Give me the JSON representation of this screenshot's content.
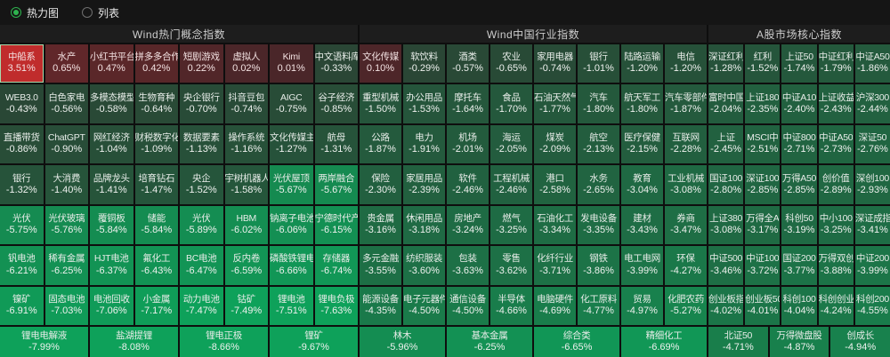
{
  "toolbar": {
    "heatmap_label": "热力图",
    "list_label": "列表"
  },
  "colors": {
    "positive_strong": "#c02c2c",
    "positive_weak": "#4a2629",
    "negative_weak": "#2b4233",
    "negative_strong": "#0ea15a",
    "positive_max": 3.5,
    "negative_max": 7.5,
    "radio_accent": "#2eb34e"
  },
  "panels": [
    {
      "title": "Wind热门概念指数",
      "columns": 8,
      "rows": [
        [
          {
            "n": "中船系",
            "v": 3.51,
            "selected": true
          },
          {
            "n": "水产",
            "v": 0.65
          },
          {
            "n": "小红书平台",
            "v": 0.47
          },
          {
            "n": "拼多多合作",
            "v": 0.42
          },
          {
            "n": "短剧游戏",
            "v": 0.22
          },
          {
            "n": "虚拟人",
            "v": 0.02
          },
          {
            "n": "Kimi",
            "v": 0.01
          },
          {
            "n": "中文语料库",
            "v": -0.33
          }
        ],
        [
          {
            "n": "WEB3.0",
            "v": -0.43
          },
          {
            "n": "白色家电",
            "v": -0.56
          },
          {
            "n": "多模态模型",
            "v": -0.58
          },
          {
            "n": "生物育种",
            "v": -0.64
          },
          {
            "n": "央企银行",
            "v": -0.7
          },
          {
            "n": "抖音豆包",
            "v": -0.74
          },
          {
            "n": "AIGC",
            "v": -0.75
          },
          {
            "n": "谷子经济",
            "v": -0.85
          }
        ],
        [
          {
            "n": "直播带货",
            "v": -0.86
          },
          {
            "n": "ChatGPT",
            "v": -0.9
          },
          {
            "n": "网红经济",
            "v": -1.04
          },
          {
            "n": "财税数字化",
            "v": -1.09
          },
          {
            "n": "数据要素",
            "v": -1.13
          },
          {
            "n": "操作系统",
            "v": -1.16
          },
          {
            "n": "文化传媒主",
            "v": -1.27
          },
          {
            "n": "航母",
            "v": -1.31
          }
        ],
        [
          {
            "n": "银行",
            "v": -1.32
          },
          {
            "n": "大消费",
            "v": -1.4
          },
          {
            "n": "品牌龙头",
            "v": -1.41
          },
          {
            "n": "培育钻石",
            "v": -1.47
          },
          {
            "n": "央企",
            "v": -1.52
          },
          {
            "n": "宇树机器人",
            "v": -1.58
          },
          {
            "n": "光伏屋顶",
            "v": -5.67
          },
          {
            "n": "两岸融合",
            "v": -5.67
          }
        ],
        [
          {
            "n": "光伏",
            "v": -5.75
          },
          {
            "n": "光伏玻璃",
            "v": -5.76
          },
          {
            "n": "覆铜板",
            "v": -5.84
          },
          {
            "n": "储能",
            "v": -5.84
          },
          {
            "n": "光伏",
            "v": -5.89
          },
          {
            "n": "HBM",
            "v": -6.02
          },
          {
            "n": "钠离子电池",
            "v": -6.06
          },
          {
            "n": "宁德时代产",
            "v": -6.15
          }
        ],
        [
          {
            "n": "钒电池",
            "v": -6.21
          },
          {
            "n": "稀有金属",
            "v": -6.25
          },
          {
            "n": "HJT电池",
            "v": -6.37
          },
          {
            "n": "氟化工",
            "v": -6.43
          },
          {
            "n": "BC电池",
            "v": -6.47
          },
          {
            "n": "反内卷",
            "v": -6.59
          },
          {
            "n": "磷酸铁锂电",
            "v": -6.66
          },
          {
            "n": "存储器",
            "v": -6.74
          }
        ],
        [
          {
            "n": "镍矿",
            "v": -6.91
          },
          {
            "n": "固态电池",
            "v": -7.03
          },
          {
            "n": "电池回收",
            "v": -7.06
          },
          {
            "n": "小金属",
            "v": -7.17
          },
          {
            "n": "动力电池",
            "v": -7.47
          },
          {
            "n": "钴矿",
            "v": -7.49
          },
          {
            "n": "锂电池",
            "v": -7.51
          },
          {
            "n": "锂电负极",
            "v": -7.63
          }
        ]
      ],
      "footer": [
        {
          "n": "锂电电解液",
          "v": -7.99
        },
        {
          "n": "盐湖提锂",
          "v": -8.08
        },
        {
          "n": "锂电正极",
          "v": -8.66
        },
        {
          "n": "锂矿",
          "v": -9.67
        }
      ]
    },
    {
      "title": "Wind中国行业指数",
      "columns": 8,
      "rows": [
        [
          {
            "n": "文化传媒",
            "v": 0.1
          },
          {
            "n": "软饮料",
            "v": -0.29
          },
          {
            "n": "酒类",
            "v": -0.57
          },
          {
            "n": "农业",
            "v": -0.65
          },
          {
            "n": "家用电器",
            "v": -0.74
          },
          {
            "n": "银行",
            "v": -1.01
          },
          {
            "n": "陆路运输",
            "v": -1.2
          },
          {
            "n": "电信",
            "v": -1.2
          }
        ],
        [
          {
            "n": "重型机械",
            "v": -1.5
          },
          {
            "n": "办公用品",
            "v": -1.53
          },
          {
            "n": "摩托车",
            "v": -1.64
          },
          {
            "n": "食品",
            "v": -1.7
          },
          {
            "n": "石油天然气",
            "v": -1.77
          },
          {
            "n": "汽车",
            "v": -1.8
          },
          {
            "n": "航天军工",
            "v": -1.8
          },
          {
            "n": "汽车零部件",
            "v": -1.87
          }
        ],
        [
          {
            "n": "公路",
            "v": -1.87
          },
          {
            "n": "电力",
            "v": -1.91
          },
          {
            "n": "机场",
            "v": -2.01
          },
          {
            "n": "海运",
            "v": -2.05
          },
          {
            "n": "煤炭",
            "v": -2.09
          },
          {
            "n": "航空",
            "v": -2.13
          },
          {
            "n": "医疗保健",
            "v": -2.15
          },
          {
            "n": "互联网",
            "v": -2.28
          }
        ],
        [
          {
            "n": "保险",
            "v": -2.3
          },
          {
            "n": "家居用品",
            "v": -2.39
          },
          {
            "n": "软件",
            "v": -2.46
          },
          {
            "n": "工程机械",
            "v": -2.46
          },
          {
            "n": "港口",
            "v": -2.58
          },
          {
            "n": "水务",
            "v": -2.65
          },
          {
            "n": "教育",
            "v": -3.04
          },
          {
            "n": "工业机械",
            "v": -3.08
          }
        ],
        [
          {
            "n": "贵金属",
            "v": -3.16
          },
          {
            "n": "休闲用品",
            "v": -3.18
          },
          {
            "n": "房地产",
            "v": -3.24
          },
          {
            "n": "燃气",
            "v": -3.25
          },
          {
            "n": "石油化工",
            "v": -3.34
          },
          {
            "n": "发电设备",
            "v": -3.35
          },
          {
            "n": "建材",
            "v": -3.43
          },
          {
            "n": "券商",
            "v": -3.47
          }
        ],
        [
          {
            "n": "多元金融",
            "v": -3.55
          },
          {
            "n": "纺织服装",
            "v": -3.6
          },
          {
            "n": "包装",
            "v": -3.63
          },
          {
            "n": "零售",
            "v": -3.62
          },
          {
            "n": "化纤行业",
            "v": -3.71
          },
          {
            "n": "钢铁",
            "v": -3.86
          },
          {
            "n": "电工电网",
            "v": -3.99
          },
          {
            "n": "环保",
            "v": -4.27
          }
        ],
        [
          {
            "n": "能源设备",
            "v": -4.35
          },
          {
            "n": "电子元器件",
            "v": -4.5
          },
          {
            "n": "通信设备",
            "v": -4.5
          },
          {
            "n": "半导体",
            "v": -4.66
          },
          {
            "n": "电脑硬件",
            "v": -4.69
          },
          {
            "n": "化工原料",
            "v": -4.77
          },
          {
            "n": "贸易",
            "v": -4.97
          },
          {
            "n": "化肥农药",
            "v": -5.27
          }
        ]
      ],
      "footer": [
        {
          "n": "林木",
          "v": -5.96
        },
        {
          "n": "基本金属",
          "v": -6.25
        },
        {
          "n": "综合类",
          "v": -6.65
        },
        {
          "n": "精细化工",
          "v": -6.69
        }
      ]
    },
    {
      "title": "A股市场核心指数",
      "columns": 5,
      "rows": [
        [
          {
            "n": "深证红利",
            "v": -1.28
          },
          {
            "n": "红利",
            "v": -1.52
          },
          {
            "n": "上证50",
            "v": -1.74
          },
          {
            "n": "中证红利",
            "v": -1.79
          },
          {
            "n": "中证A50",
            "v": -1.86
          }
        ],
        [
          {
            "n": "富时中国",
            "v": -2.04
          },
          {
            "n": "上证180",
            "v": -2.35
          },
          {
            "n": "中证A10",
            "v": -2.4
          },
          {
            "n": "上证收益",
            "v": -2.43
          },
          {
            "n": "沪深300",
            "v": -2.44
          }
        ],
        [
          {
            "n": "上证",
            "v": -2.45
          },
          {
            "n": "MSCI中",
            "v": -2.51
          },
          {
            "n": "中证800",
            "v": -2.71
          },
          {
            "n": "中证A50",
            "v": -2.73
          },
          {
            "n": "深证50",
            "v": -2.76
          }
        ],
        [
          {
            "n": "国证100",
            "v": -2.8
          },
          {
            "n": "深证100",
            "v": -2.85
          },
          {
            "n": "万得A50",
            "v": -2.85
          },
          {
            "n": "创价值",
            "v": -2.89
          },
          {
            "n": "深创100",
            "v": -2.93
          }
        ],
        [
          {
            "n": "上证380",
            "v": -3.08
          },
          {
            "n": "万得全A",
            "v": -3.17
          },
          {
            "n": "科创50",
            "v": -3.19
          },
          {
            "n": "中小100",
            "v": -3.25
          },
          {
            "n": "深证成指",
            "v": -3.41
          }
        ],
        [
          {
            "n": "中证500",
            "v": -3.46
          },
          {
            "n": "中证100",
            "v": -3.72
          },
          {
            "n": "国证200",
            "v": -3.77
          },
          {
            "n": "万得双创",
            "v": -3.88
          },
          {
            "n": "中证200",
            "v": -3.99
          }
        ],
        [
          {
            "n": "创业板指",
            "v": -4.02
          },
          {
            "n": "创业板50",
            "v": -4.01
          },
          {
            "n": "科创100",
            "v": -4.04
          },
          {
            "n": "科创创业",
            "v": -4.24
          },
          {
            "n": "科创200",
            "v": -4.55
          }
        ]
      ],
      "footer": [
        {
          "n": "北证50",
          "v": -4.71
        },
        {
          "n": "万得微盘股",
          "v": -4.87
        },
        {
          "n": "创成长",
          "v": -4.94
        }
      ]
    }
  ]
}
